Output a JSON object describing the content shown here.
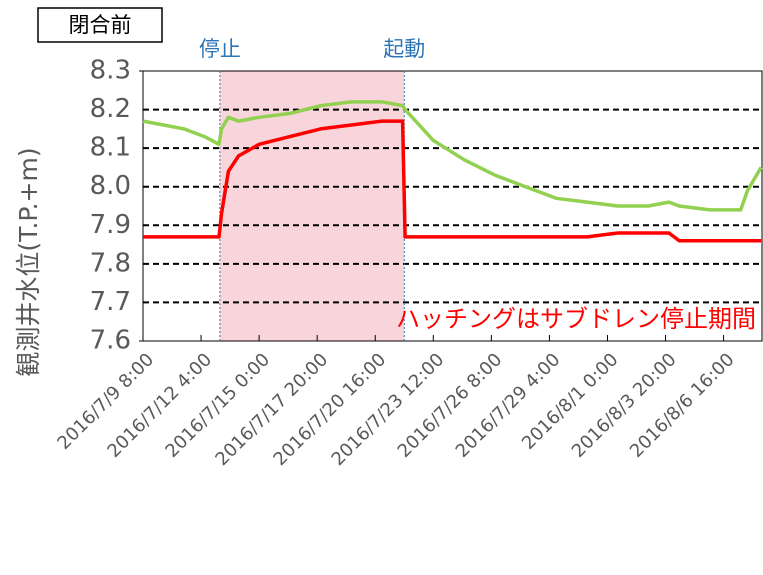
{
  "chart_data": {
    "type": "line",
    "title_box": "閉合前",
    "ylabel": "観測井水位(T.P.+m)",
    "shade_label": "ハッチングはサブドレン停止期間",
    "shade_color": "#f8d5da",
    "events": [
      {
        "text": "停止",
        "x": "2016/7/13 2:00",
        "color": "#2e75b6"
      },
      {
        "text": "起動",
        "x": "2016/7/22 2:00",
        "color": "#2e75b6"
      }
    ],
    "x": [
      "2016/7/9 8:00",
      "2016/7/10 8:00",
      "2016/7/11 8:00",
      "2016/7/12 8:00",
      "2016/7/13 1:00",
      "2016/7/13 4:00",
      "2016/7/13 12:00",
      "2016/7/14 0:00",
      "2016/7/15 0:00",
      "2016/7/16 12:00",
      "2016/7/18 0:00",
      "2016/7/19 12:00",
      "2016/7/21 0:00",
      "2016/7/22 0:00",
      "2016/7/22 3:00",
      "2016/7/23 12:00",
      "2016/7/25 0:00",
      "2016/7/26 12:00",
      "2016/7/28 0:00",
      "2016/7/29 12:00",
      "2016/7/31 0:00",
      "2016/8/1 12:00",
      "2016/8/3 0:00",
      "2016/8/4 0:00",
      "2016/8/4 12:00",
      "2016/8/6 0:00",
      "2016/8/7 12:00",
      "2016/8/7 20:00",
      "2016/8/8 12:00"
    ],
    "series": [
      {
        "name": "green",
        "color": "#92d050",
        "values": [
          8.17,
          8.16,
          8.15,
          8.13,
          8.11,
          8.15,
          8.18,
          8.17,
          8.18,
          8.19,
          8.21,
          8.22,
          8.22,
          8.21,
          8.2,
          8.12,
          8.07,
          8.03,
          8.0,
          7.97,
          7.96,
          7.95,
          7.95,
          7.96,
          7.95,
          7.94,
          7.94,
          7.99,
          8.05
        ]
      },
      {
        "name": "red",
        "color": "#ff0000",
        "values": [
          7.87,
          7.87,
          7.87,
          7.87,
          7.87,
          7.93,
          8.04,
          8.08,
          8.11,
          8.13,
          8.15,
          8.16,
          8.17,
          8.17,
          7.87,
          7.87,
          7.87,
          7.87,
          7.87,
          7.87,
          7.87,
          7.88,
          7.88,
          7.88,
          7.86,
          7.86,
          7.86,
          7.86,
          7.86
        ]
      }
    ],
    "xlim": [
      "2016/7/9 8:00",
      "2016/8/8 13:00"
    ],
    "xticks": [
      "2016/7/9 8:00",
      "2016/7/12 4:00",
      "2016/7/15 0:00",
      "2016/7/17 20:00",
      "2016/7/20 16:00",
      "2016/7/23 12:00",
      "2016/7/26 8:00",
      "2016/7/29 4:00",
      "2016/8/1 0:00",
      "2016/8/3 20:00",
      "2016/8/6 16:00"
    ],
    "ylim": [
      7.6,
      8.3
    ],
    "yticks": [
      7.6,
      7.7,
      7.8,
      7.9,
      {
        "value": 8,
        "label": "8.0"
      },
      8.1,
      8.2,
      8.3
    ],
    "grid": true
  }
}
